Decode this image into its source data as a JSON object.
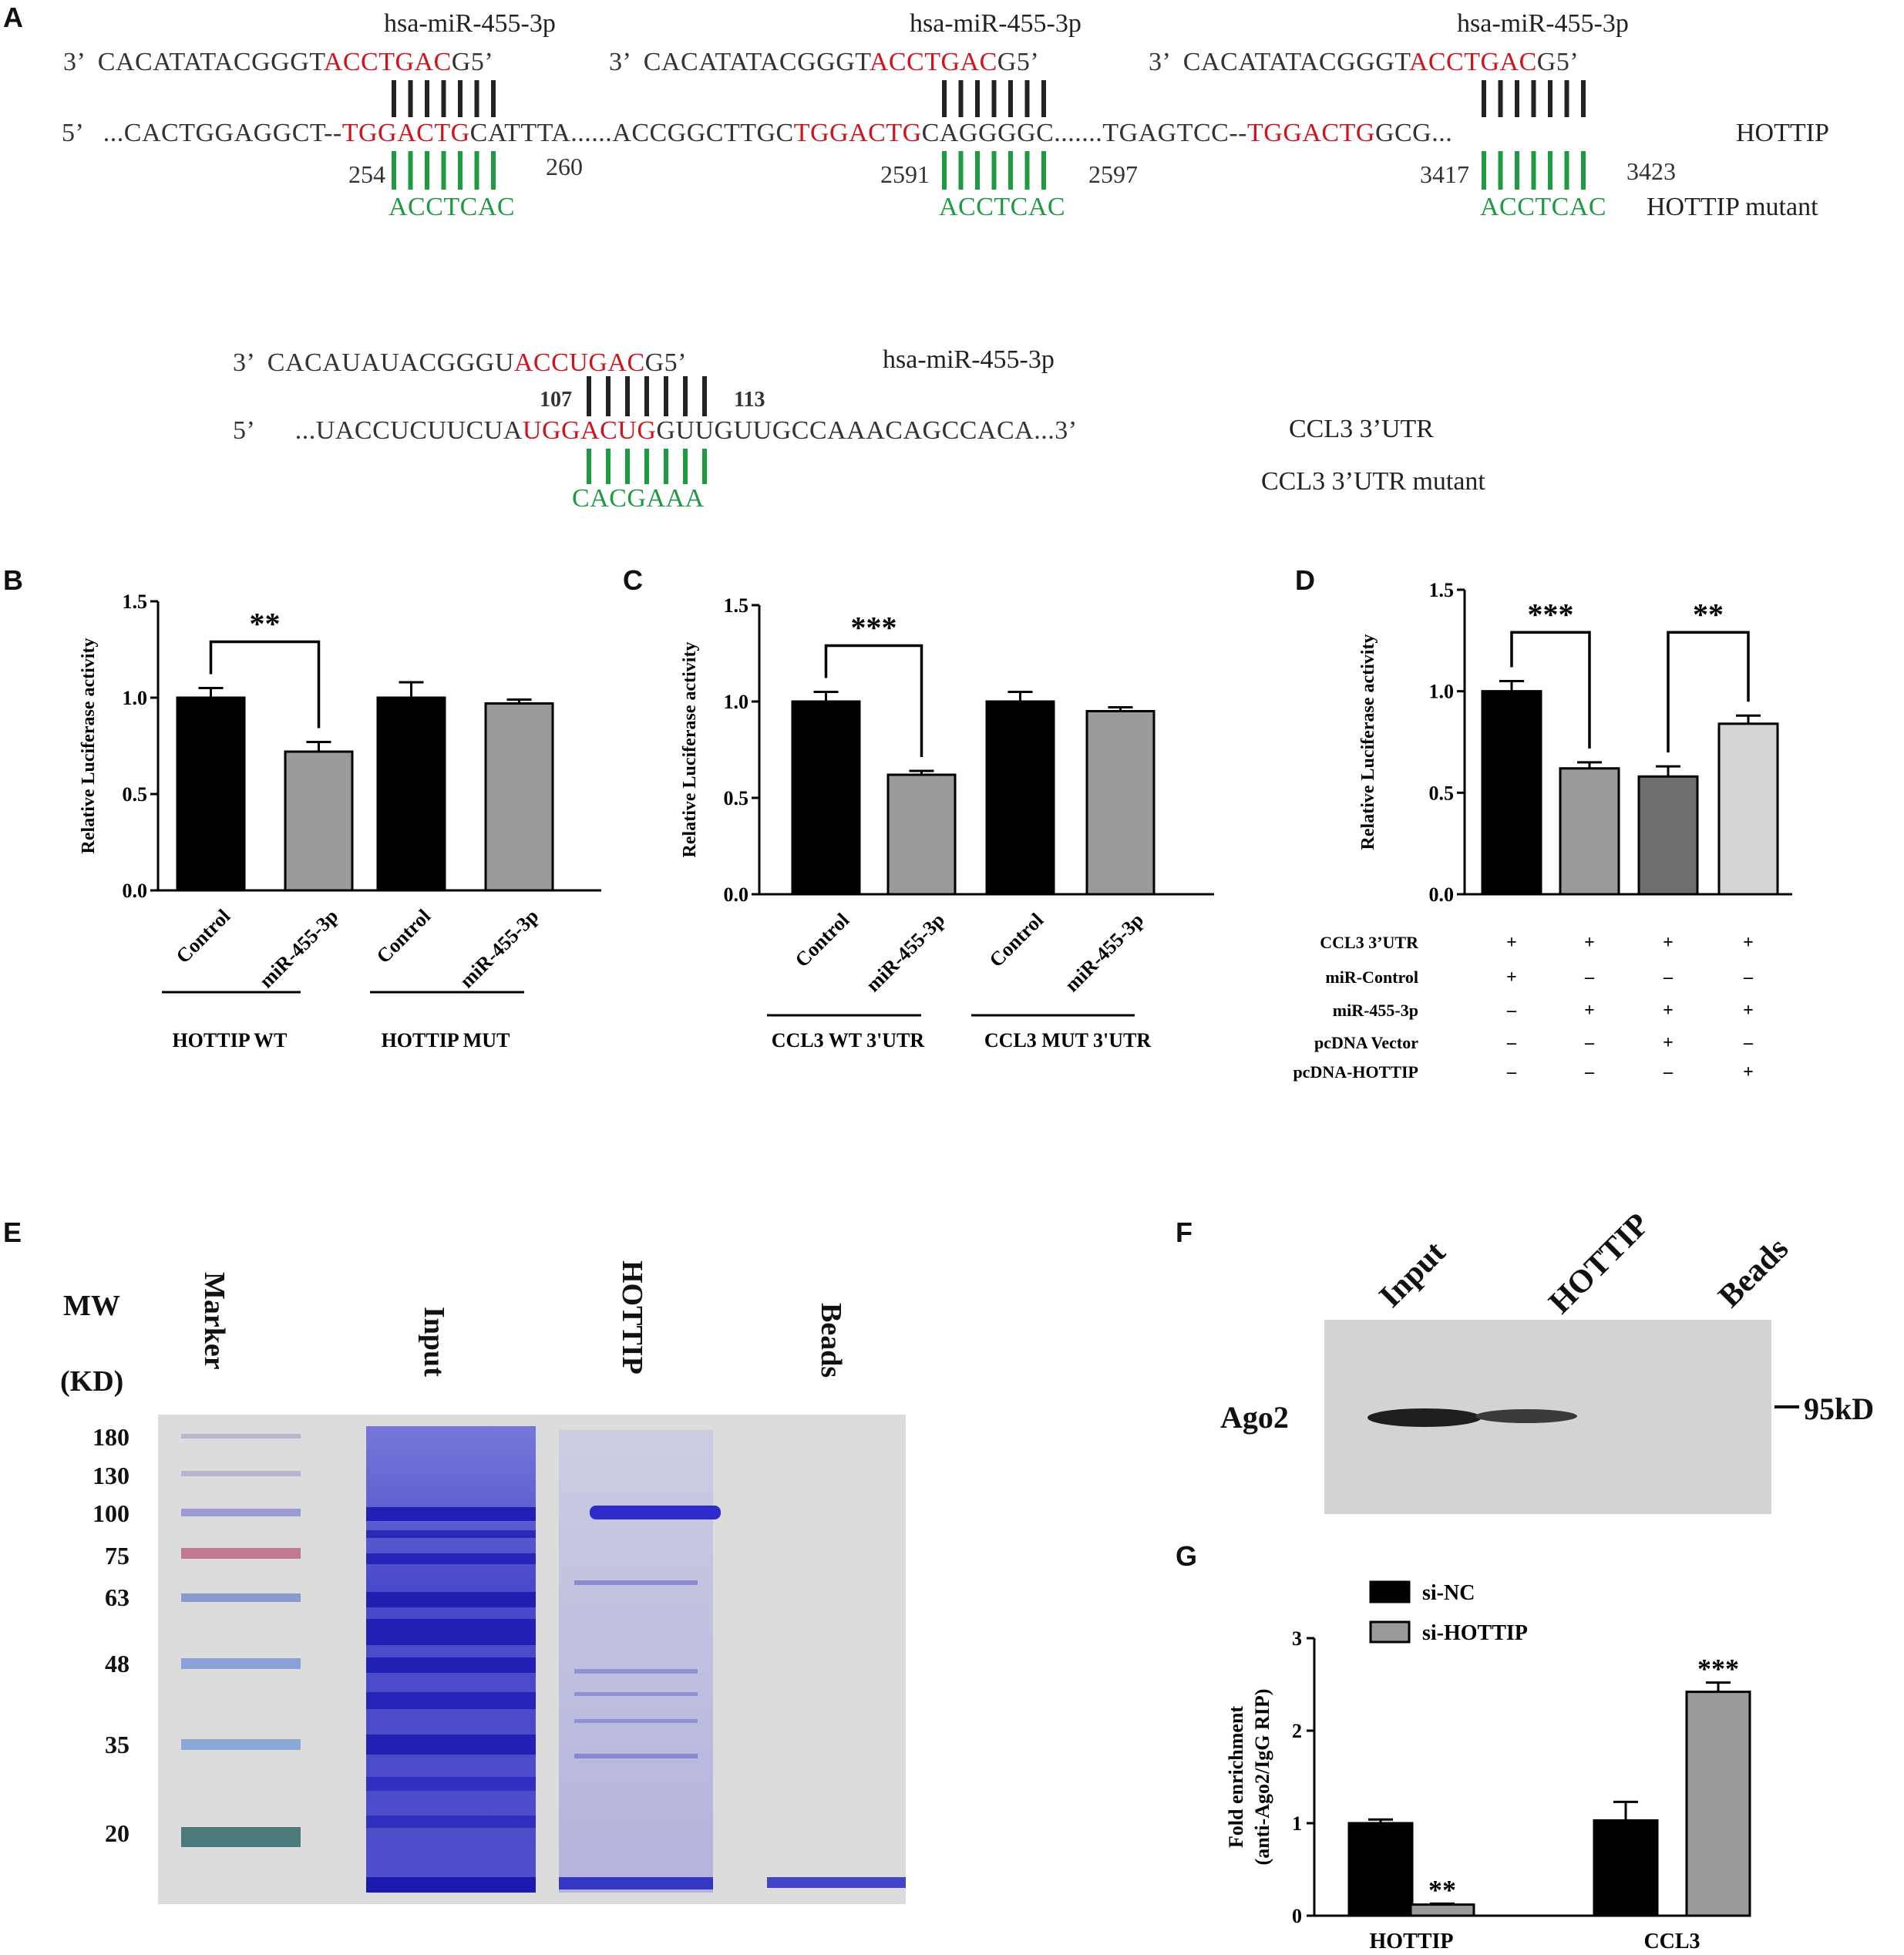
{
  "panels": {
    "A": "A",
    "B": "B",
    "C": "C",
    "D": "D",
    "E": "E",
    "F": "F",
    "G": "G"
  },
  "panel_a": {
    "mirna_label": "hsa-miR-455-3p",
    "mirna_dna_prefix": "3’  CACATATACGGGT",
    "mirna_dna_seed": "ACCTGAC",
    "mirna_dna_suffix": "G5’",
    "mirna_dna_prefix_short": "CACATATACGGGT",
    "site1": {
      "pre": "5’   ...CACTGGAGGCT--",
      "seed": "TGGACTG",
      "post": "CATTTA",
      "start": "254",
      "end": "260",
      "mutant": "ACCTCAC"
    },
    "site2": {
      "pre": "......ACCGGCTTGC",
      "seed": "TGGACTG",
      "post": "CAGGGGC",
      "start": "2591",
      "end": "2597",
      "mutant": "ACCTCAC"
    },
    "site3": {
      "pre": ".......TGAGTCC--",
      "seed": "TGGACTG",
      "post": "GCG...",
      "start": "3417",
      "end": "3423",
      "mutant": "ACCTCAC"
    },
    "hottip_label": "HOTTIP",
    "hottip_mutant_label": "HOTTIP mutant",
    "rna_prefix": "3’  CACAUAUACGGGU",
    "rna_seed": "ACCUGAC",
    "rna_suffix": "G5’",
    "ccl3_pre": "5’      ...UACCUCUUCUA",
    "ccl3_seed": "UGGACUG",
    "ccl3_post": "GUUGUUGCCAAACAGCCACA...3’",
    "ccl3_start": "107",
    "ccl3_end": "113",
    "ccl3_mutant": "CACGAAA",
    "ccl3_label": "CCL3  3’UTR",
    "ccl3_mutant_label": "CCL3 3’UTR mutant"
  },
  "chart_data": [
    {
      "id": "B",
      "type": "bar",
      "ylabel": "Relative Luciferase activity",
      "ylim": [
        0,
        1.5
      ],
      "yticks": [
        "0.0",
        "0.5",
        "1.0",
        "1.5"
      ],
      "categories": [
        "Control",
        "miR-455-3p",
        "Control",
        "miR-455-3p"
      ],
      "values": [
        1.0,
        0.72,
        1.0,
        0.97
      ],
      "errors": [
        0.05,
        0.05,
        0.08,
        0.02
      ],
      "colors": [
        "#000000",
        "#9a9a9a",
        "#000000",
        "#9a9a9a"
      ],
      "groups": [
        "HOTTIP WT",
        "HOTTIP MUT"
      ],
      "significance": [
        {
          "from": 0,
          "to": 1,
          "label": "**"
        }
      ]
    },
    {
      "id": "C",
      "type": "bar",
      "ylabel": "Relative Luciferase activity",
      "ylim": [
        0,
        1.5
      ],
      "yticks": [
        "0.0",
        "0.5",
        "1.0",
        "1.5"
      ],
      "categories": [
        "Control",
        "miR-455-3p",
        "Control",
        "miR-455-3p"
      ],
      "values": [
        1.0,
        0.62,
        1.0,
        0.95
      ],
      "errors": [
        0.05,
        0.02,
        0.05,
        0.02
      ],
      "colors": [
        "#000000",
        "#9a9a9a",
        "#000000",
        "#9a9a9a"
      ],
      "groups": [
        "CCL3 WT 3'UTR",
        "CCL3 MUT 3'UTR"
      ],
      "significance": [
        {
          "from": 0,
          "to": 1,
          "label": "***"
        }
      ]
    },
    {
      "id": "D",
      "type": "bar",
      "ylabel": "Relative Luciferase activity",
      "ylim": [
        0,
        1.5
      ],
      "yticks": [
        "0.0",
        "0.5",
        "1.0",
        "1.5"
      ],
      "values": [
        1.0,
        0.62,
        0.58,
        0.84
      ],
      "errors": [
        0.05,
        0.03,
        0.05,
        0.04
      ],
      "colors": [
        "#000000",
        "#9a9a9a",
        "#6f6f6f",
        "#d4d4d4"
      ],
      "significance": [
        {
          "from": 0,
          "to": 1,
          "label": "***"
        },
        {
          "from": 2,
          "to": 3,
          "label": "**"
        }
      ],
      "conditions": [
        {
          "name": "CCL3 3’UTR",
          "marks": [
            "+",
            "+",
            "+",
            "+"
          ]
        },
        {
          "name": "miR-Control",
          "marks": [
            "+",
            "–",
            "–",
            "–"
          ]
        },
        {
          "name": "miR-455-3p",
          "marks": [
            "–",
            "+",
            "+",
            "+"
          ]
        },
        {
          "name": "pcDNA Vector",
          "marks": [
            "–",
            "–",
            "+",
            "–"
          ]
        },
        {
          "name": "pcDNA-HOTTIP",
          "marks": [
            "–",
            "–",
            "–",
            "+"
          ]
        }
      ]
    },
    {
      "id": "G",
      "type": "bar",
      "ylabel": "Fold enrichment",
      "ylabel2": "(anti-Ago2/IgG RIP)",
      "ylim": [
        0,
        3
      ],
      "yticks": [
        "0",
        "1",
        "2",
        "3"
      ],
      "categories": [
        "HOTTIP",
        "CCL3"
      ],
      "series": [
        {
          "name": "si-NC",
          "values": [
            1.0,
            1.03
          ],
          "errors": [
            0.04,
            0.2
          ],
          "color": "#000000"
        },
        {
          "name": "si-HOTTIP",
          "values": [
            0.12,
            2.42
          ],
          "errors": [
            0.01,
            0.1
          ],
          "color": "#9a9a9a"
        }
      ],
      "significance_labels": [
        "**",
        "***"
      ]
    }
  ],
  "panel_e": {
    "mw_label": "MW",
    "kd_label": "(KD)",
    "lanes": [
      "Marker",
      "Input",
      "HOTTIP",
      "Beads"
    ],
    "markers": [
      "180",
      "130",
      "100",
      "75",
      "63",
      "48",
      "35",
      "20"
    ]
  },
  "panel_f": {
    "lanes": [
      "Input",
      "HOTTIP",
      "Beads"
    ],
    "protein": "Ago2",
    "size_label": "95kD"
  }
}
